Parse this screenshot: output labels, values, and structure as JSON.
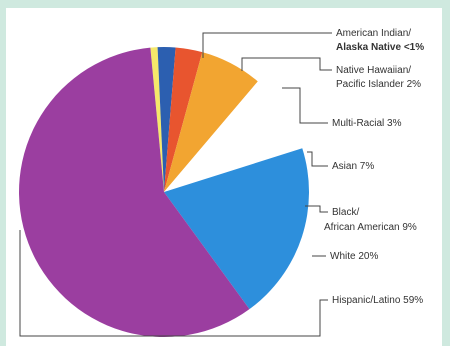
{
  "chart_data": {
    "type": "pie",
    "categories": [
      "American Indian/ Alaska Native",
      "Native Hawaiian/ Pacific Islander",
      "Multi-Racial",
      "Asian",
      "Black/ African American",
      "White",
      "Hispanic/Latino"
    ],
    "values": [
      0.8,
      2,
      3,
      7,
      9,
      20,
      59
    ],
    "display_values": [
      "<1%",
      "2%",
      "3%",
      "7%",
      "9%",
      "20%",
      "59%"
    ],
    "colors": [
      "#f5e86a",
      "#2c5fb0",
      "#e8552f",
      "#f2a531",
      "#ffffff",
      "#2d8fdc",
      "#9b3ea0"
    ],
    "labels": [
      [
        "American Indian/",
        "Alaska Native <1%"
      ],
      [
        "Native Hawaiian/",
        "Pacific Islander 2%"
      ],
      [
        "Multi-Racial 3%"
      ],
      [
        "Asian 7%"
      ],
      [
        "Black/",
        "African American 9%"
      ],
      [
        "White 20%"
      ],
      [
        "Hispanic/Latino 59%"
      ]
    ],
    "legend": "callouts-right"
  }
}
